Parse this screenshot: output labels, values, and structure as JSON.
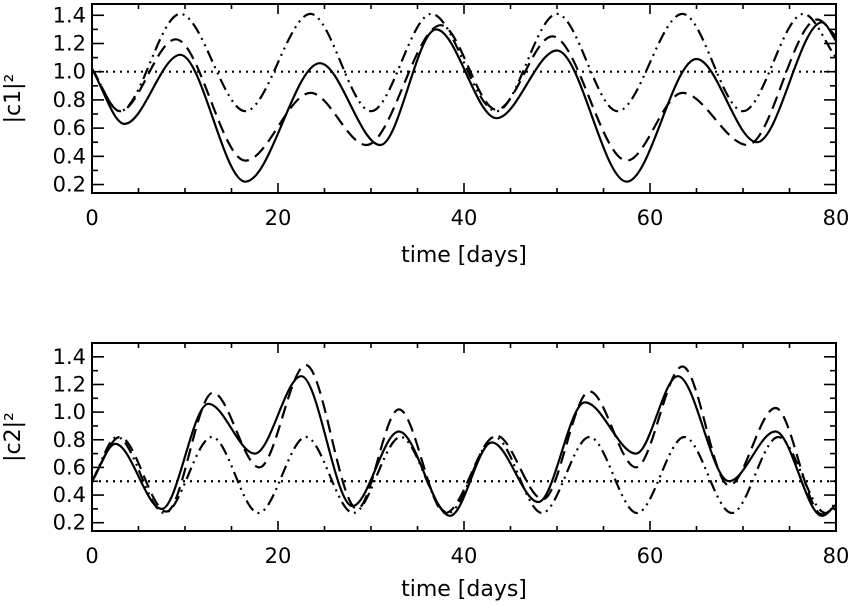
{
  "chart_data": [
    {
      "type": "line",
      "xlabel": "time [days]",
      "ylabel": "|c1|²",
      "xlim": [
        0,
        80
      ],
      "ylim": [
        0.14,
        1.48
      ],
      "x_ticks": [
        0,
        20,
        40,
        60,
        80
      ],
      "x_tick_labels": [
        "0",
        "20",
        "40",
        "60",
        "80"
      ],
      "y_ticks": [
        0.2,
        0.4,
        0.6,
        0.8,
        1.0,
        1.2,
        1.4
      ],
      "y_tick_labels": [
        "0.2",
        "0.4",
        "0.6",
        "0.8",
        "1.0",
        "1.2",
        "1.4"
      ],
      "reference_line": {
        "y": 1.0,
        "style": "dotted"
      },
      "series": [
        {
          "style": "solid",
          "x": [
            0,
            3.5,
            9.5,
            16.5,
            24.5,
            31,
            37,
            43.5,
            50,
            57.5,
            65,
            71.5,
            78.5,
            80
          ],
          "values": [
            1.02,
            0.63,
            1.12,
            0.22,
            1.06,
            0.48,
            1.3,
            0.67,
            1.15,
            0.22,
            1.09,
            0.5,
            1.35,
            1.22
          ]
        },
        {
          "style": "dashed",
          "x": [
            0,
            3,
            9,
            16.5,
            23.5,
            29.5,
            37.5,
            43.5,
            49.5,
            57.5,
            63.5,
            70.5,
            78,
            80
          ],
          "values": [
            1.02,
            0.72,
            1.23,
            0.37,
            0.85,
            0.48,
            1.33,
            0.73,
            1.25,
            0.37,
            0.85,
            0.48,
            1.37,
            1.25
          ]
        },
        {
          "style": "dash-dot-dot",
          "x": [
            0,
            3,
            9.5,
            16.5,
            23.5,
            30,
            36.5,
            43.5,
            50,
            56.5,
            63.5,
            70,
            76.5,
            80
          ],
          "values": [
            1.02,
            0.72,
            1.41,
            0.72,
            1.41,
            0.72,
            1.41,
            0.72,
            1.41,
            0.72,
            1.41,
            0.72,
            1.41,
            1.1
          ]
        }
      ]
    },
    {
      "type": "line",
      "xlabel": "time [days]",
      "ylabel": "|c2|²",
      "xlim": [
        0,
        80
      ],
      "ylim": [
        0.14,
        1.5
      ],
      "x_ticks": [
        0,
        20,
        40,
        60,
        80
      ],
      "x_tick_labels": [
        "0",
        "20",
        "40",
        "60",
        "80"
      ],
      "y_ticks": [
        0.2,
        0.4,
        0.6,
        0.8,
        1.0,
        1.2,
        1.4
      ],
      "y_tick_labels": [
        "0.2",
        "0.4",
        "0.6",
        "0.8",
        "1.0",
        "1.2",
        "1.4"
      ],
      "reference_line": {
        "y": 0.5,
        "style": "dotted"
      },
      "series": [
        {
          "style": "solid",
          "x": [
            0,
            2.5,
            7.5,
            12.5,
            17.5,
            22.5,
            28,
            33,
            38.5,
            43,
            48,
            53,
            58.5,
            63,
            68.5,
            73.5,
            78.5,
            80
          ],
          "values": [
            0.5,
            0.77,
            0.3,
            1.06,
            0.7,
            1.26,
            0.32,
            0.86,
            0.25,
            0.78,
            0.35,
            1.07,
            0.7,
            1.26,
            0.5,
            0.86,
            0.25,
            0.33
          ]
        },
        {
          "style": "dashed",
          "x": [
            0,
            3,
            8,
            13,
            18,
            23,
            28.5,
            33,
            38,
            43.5,
            48.5,
            53.5,
            58.5,
            63.5,
            68.5,
            73.5,
            78.5,
            80
          ],
          "values": [
            0.5,
            0.82,
            0.28,
            1.14,
            0.6,
            1.34,
            0.3,
            1.02,
            0.27,
            0.83,
            0.37,
            1.15,
            0.6,
            1.33,
            0.47,
            1.03,
            0.26,
            0.3
          ]
        },
        {
          "style": "dash-dot-dot",
          "x": [
            0,
            2.7,
            7.8,
            12.9,
            17.9,
            23,
            28.1,
            33.2,
            38.3,
            43.3,
            48.4,
            53.5,
            58.6,
            63.7,
            68.8,
            73.8,
            78.9,
            80
          ],
          "values": [
            0.5,
            0.82,
            0.27,
            0.82,
            0.27,
            0.82,
            0.27,
            0.82,
            0.27,
            0.82,
            0.27,
            0.82,
            0.27,
            0.82,
            0.27,
            0.82,
            0.27,
            0.35
          ]
        }
      ]
    }
  ]
}
